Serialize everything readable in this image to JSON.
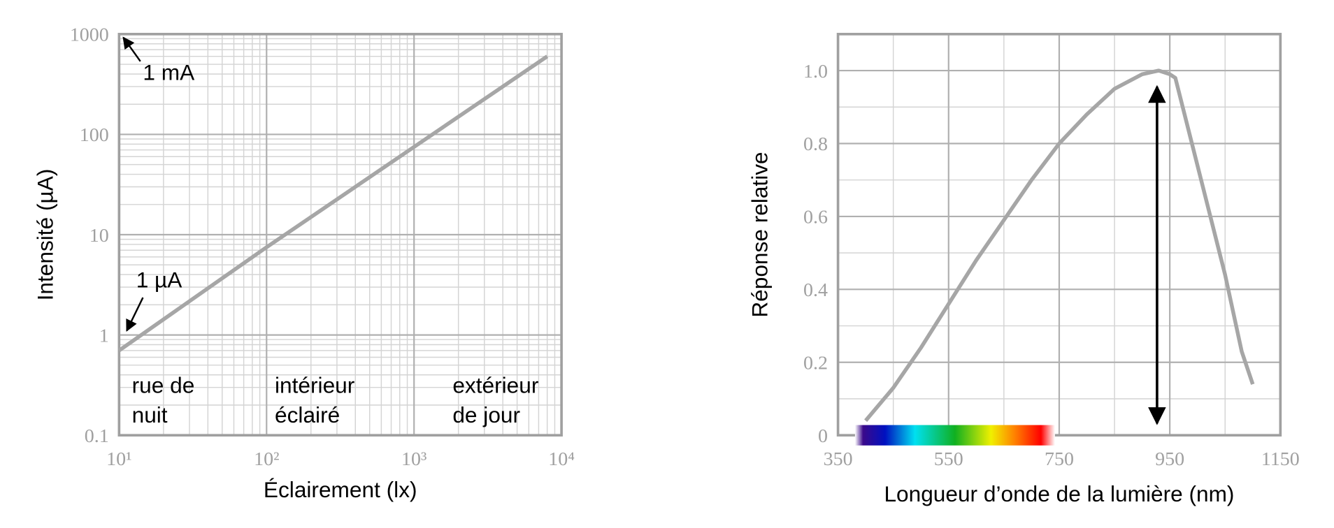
{
  "chart_data": [
    {
      "type": "line",
      "x_label": "Éclairement (lx)",
      "y_label": "Intensité (µA)",
      "xscale": "log",
      "yscale": "log",
      "grid": true,
      "minor_grid": true,
      "xlim": [
        10,
        10000
      ],
      "ylim": [
        0.1,
        1000
      ],
      "xticks": [
        {
          "value": 10,
          "label": "10¹"
        },
        {
          "value": 100,
          "label": "10²"
        },
        {
          "value": 1000,
          "label": "10³"
        },
        {
          "value": 10000,
          "label": "10⁴"
        }
      ],
      "yticks": [
        0.1,
        1,
        10,
        100,
        1000
      ],
      "x": [
        10,
        100,
        1000,
        8000
      ],
      "series": [
        {
          "color": "#a6a6a6",
          "values": [
            0.7,
            7.5,
            75,
            600
          ]
        }
      ],
      "annotations": [
        "1 mA",
        "1 µA"
      ],
      "region_labels": [
        [
          "rue de",
          "nuit"
        ],
        [
          "intérieur",
          "éclairé"
        ],
        [
          "extérieur",
          "de jour"
        ]
      ]
    },
    {
      "type": "line",
      "x_label": "Longueur d’onde de la lumière (nm)",
      "y_label": "Réponse relative",
      "grid": true,
      "minor_grid": true,
      "xlim": [
        350,
        1150
      ],
      "ylim": [
        0,
        1.1
      ],
      "xticks": [
        350,
        550,
        750,
        950,
        1150
      ],
      "yticks": [
        0,
        0.2,
        0.4,
        0.6,
        0.8,
        {
          "value": 1,
          "label": "1.0"
        }
      ],
      "x": [
        400,
        450,
        500,
        550,
        600,
        650,
        700,
        750,
        800,
        850,
        900,
        930,
        950,
        960,
        1000,
        1050,
        1080,
        1100
      ],
      "series": [
        {
          "color": "#a6a6a6",
          "values": [
            0.04,
            0.13,
            0.24,
            0.36,
            0.48,
            0.59,
            0.7,
            0.8,
            0.88,
            0.95,
            0.99,
            1.0,
            0.99,
            0.98,
            0.74,
            0.44,
            0.23,
            0.14
          ]
        }
      ]
    }
  ]
}
